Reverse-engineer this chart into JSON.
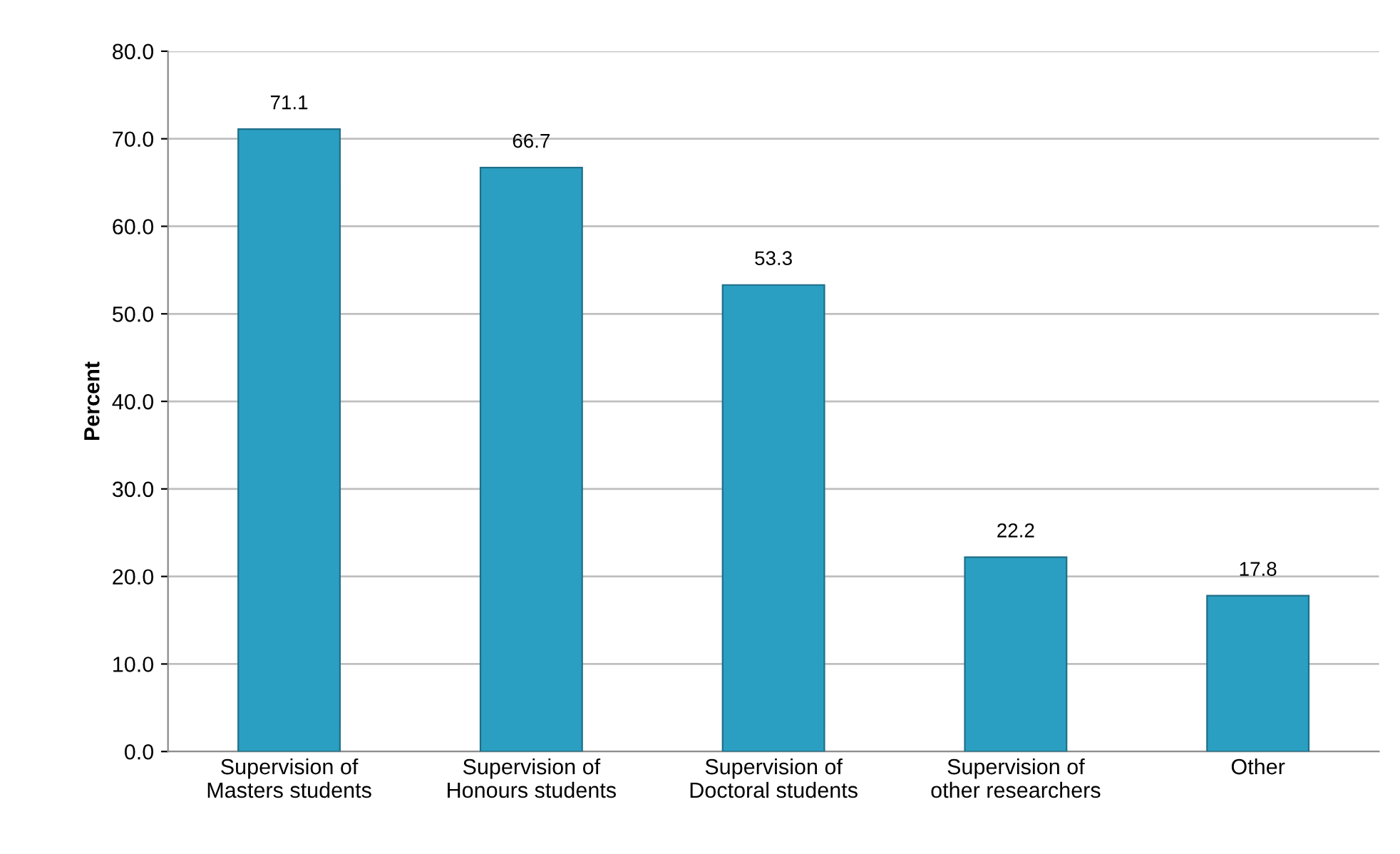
{
  "chart_data": {
    "type": "bar",
    "ylabel": "Percent",
    "categories": [
      "Supervision of\nMasters students",
      "Supervision of\nHonours students",
      "Supervision of\nDoctoral students",
      "Supervision of\nother researchers",
      "Other"
    ],
    "values": [
      71.1,
      66.7,
      53.3,
      22.2,
      17.8
    ],
    "color": "#2b9fc2",
    "ylim": [
      0,
      80
    ],
    "yticks": [
      {
        "value": 0,
        "label": "0.0"
      },
      {
        "value": 10,
        "label": "10.0"
      },
      {
        "value": 20,
        "label": "20.0"
      },
      {
        "value": 30,
        "label": "30.0"
      },
      {
        "value": 40,
        "label": "40.0"
      },
      {
        "value": 50,
        "label": "50.0"
      },
      {
        "value": 60,
        "label": "60.0"
      },
      {
        "value": 70,
        "label": "70.0"
      },
      {
        "value": 80,
        "label": "80.0"
      }
    ],
    "grid": "y",
    "data_labels": true
  }
}
